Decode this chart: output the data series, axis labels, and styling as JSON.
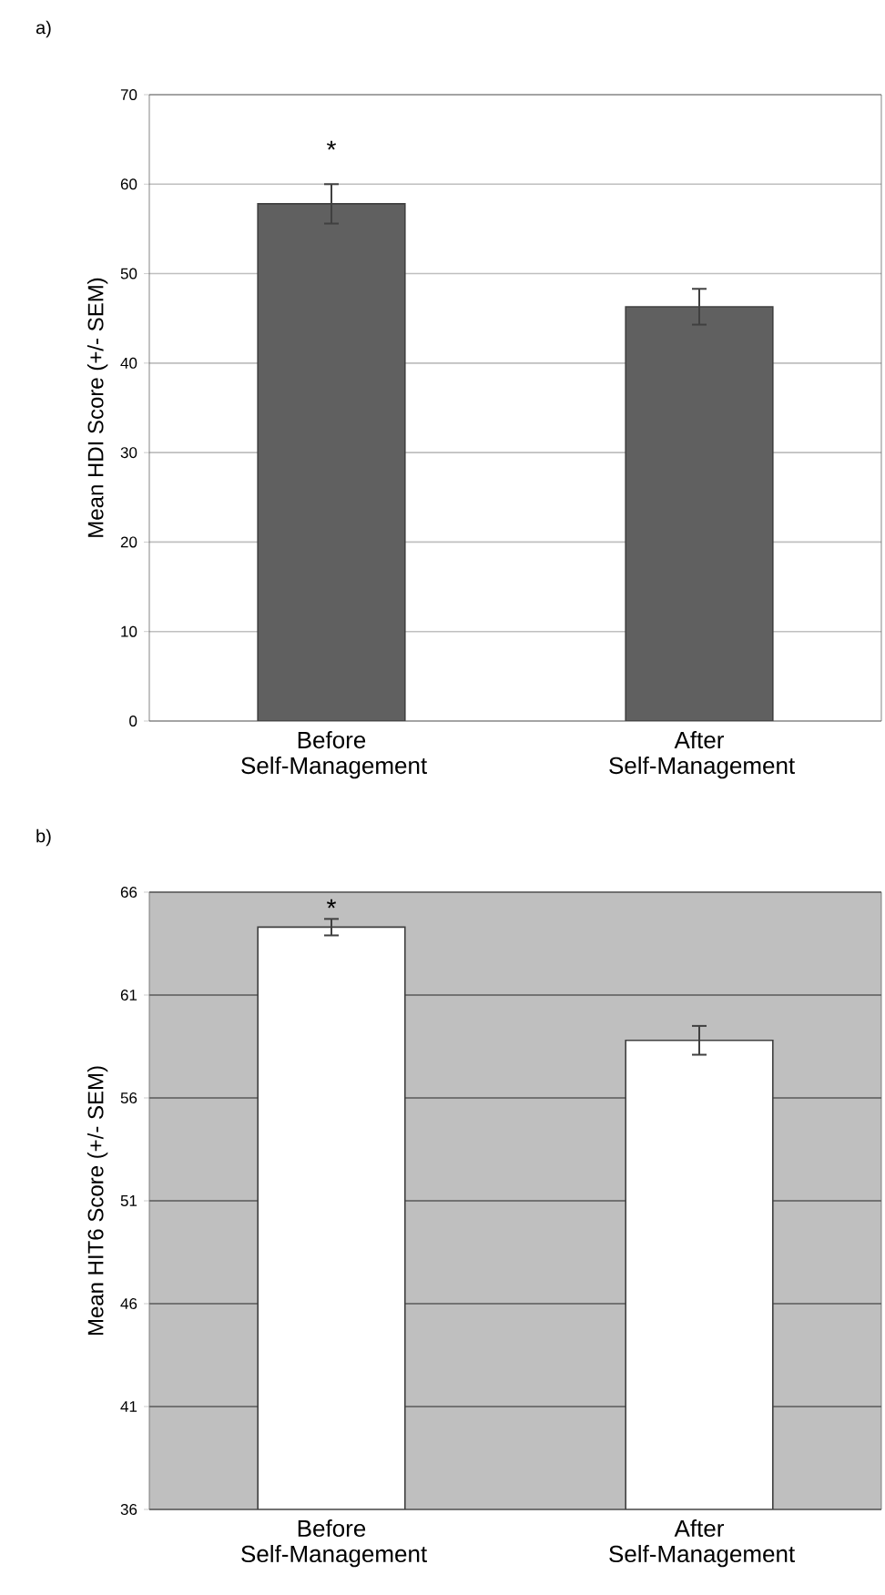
{
  "chart_data": [
    {
      "type": "bar",
      "title": "a)",
      "ylabel": "Mean HDI Score (+/- SEM)",
      "categories": [
        "Before Self-Management",
        "After Self-Management"
      ],
      "values": [
        57.8,
        46.3
      ],
      "errors": [
        2.2,
        2.0
      ],
      "color": "#606060",
      "ylim": [
        0,
        70
      ],
      "yticks": [
        0,
        10,
        20,
        30,
        40,
        50,
        60,
        70
      ],
      "grid": "y",
      "annotations": [
        "*"
      ]
    },
    {
      "type": "bar",
      "title": "b)",
      "ylabel": "Mean HIT6 Score (+/- SEM)",
      "categories": [
        "Before Self-Management",
        "After Self-Management"
      ],
      "values": [
        64.3,
        58.8
      ],
      "errors": [
        0.4,
        0.7
      ],
      "color": "#ffffff",
      "ylim": [
        36,
        66
      ],
      "yticks": [
        36,
        41,
        46,
        51,
        56,
        61,
        66
      ],
      "grid": "y",
      "annotations": [
        "*"
      ]
    }
  ]
}
